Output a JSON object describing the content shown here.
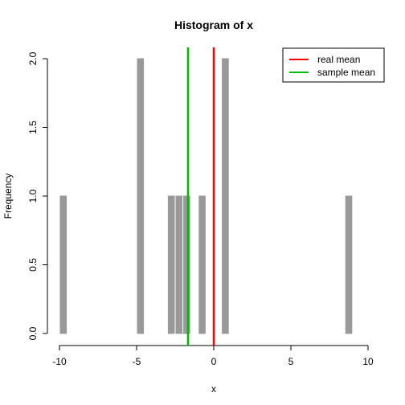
{
  "chart_data": {
    "type": "bar",
    "title": "Histogram of x",
    "xlabel": "x",
    "ylabel": "Frequency",
    "xlim": [
      -10,
      10
    ],
    "ylim": [
      0,
      2
    ],
    "x_ticks": [
      -10,
      -5,
      0,
      5,
      10
    ],
    "x_tick_labels": [
      "-10",
      "-5",
      "0",
      "5",
      "10"
    ],
    "y_ticks": [
      0,
      0.5,
      1,
      1.5,
      2
    ],
    "y_tick_labels": [
      "0.0",
      "0.5",
      "1.0",
      "1.5",
      "2.0"
    ],
    "bin_width": 0.5,
    "bins": [
      {
        "x0": -10.0,
        "x1": -9.5,
        "count": 1
      },
      {
        "x0": -5.0,
        "x1": -4.5,
        "count": 2
      },
      {
        "x0": -3.0,
        "x1": -2.5,
        "count": 1
      },
      {
        "x0": -2.5,
        "x1": -2.0,
        "count": 1
      },
      {
        "x0": -2.0,
        "x1": -1.5,
        "count": 1
      },
      {
        "x0": -1.0,
        "x1": -0.5,
        "count": 1
      },
      {
        "x0": 0.5,
        "x1": 1.0,
        "count": 2
      },
      {
        "x0": 8.5,
        "x1": 9.0,
        "count": 1
      }
    ],
    "bar_color": "#999999",
    "reference_lines": [
      {
        "name": "real mean",
        "x": 0,
        "color": "#ff0000"
      },
      {
        "name": "sample mean",
        "x": -1.67,
        "color": "#00bb00"
      }
    ],
    "legend": {
      "position": "top-right",
      "items": [
        "real mean",
        "sample mean"
      ]
    },
    "grid": false
  }
}
